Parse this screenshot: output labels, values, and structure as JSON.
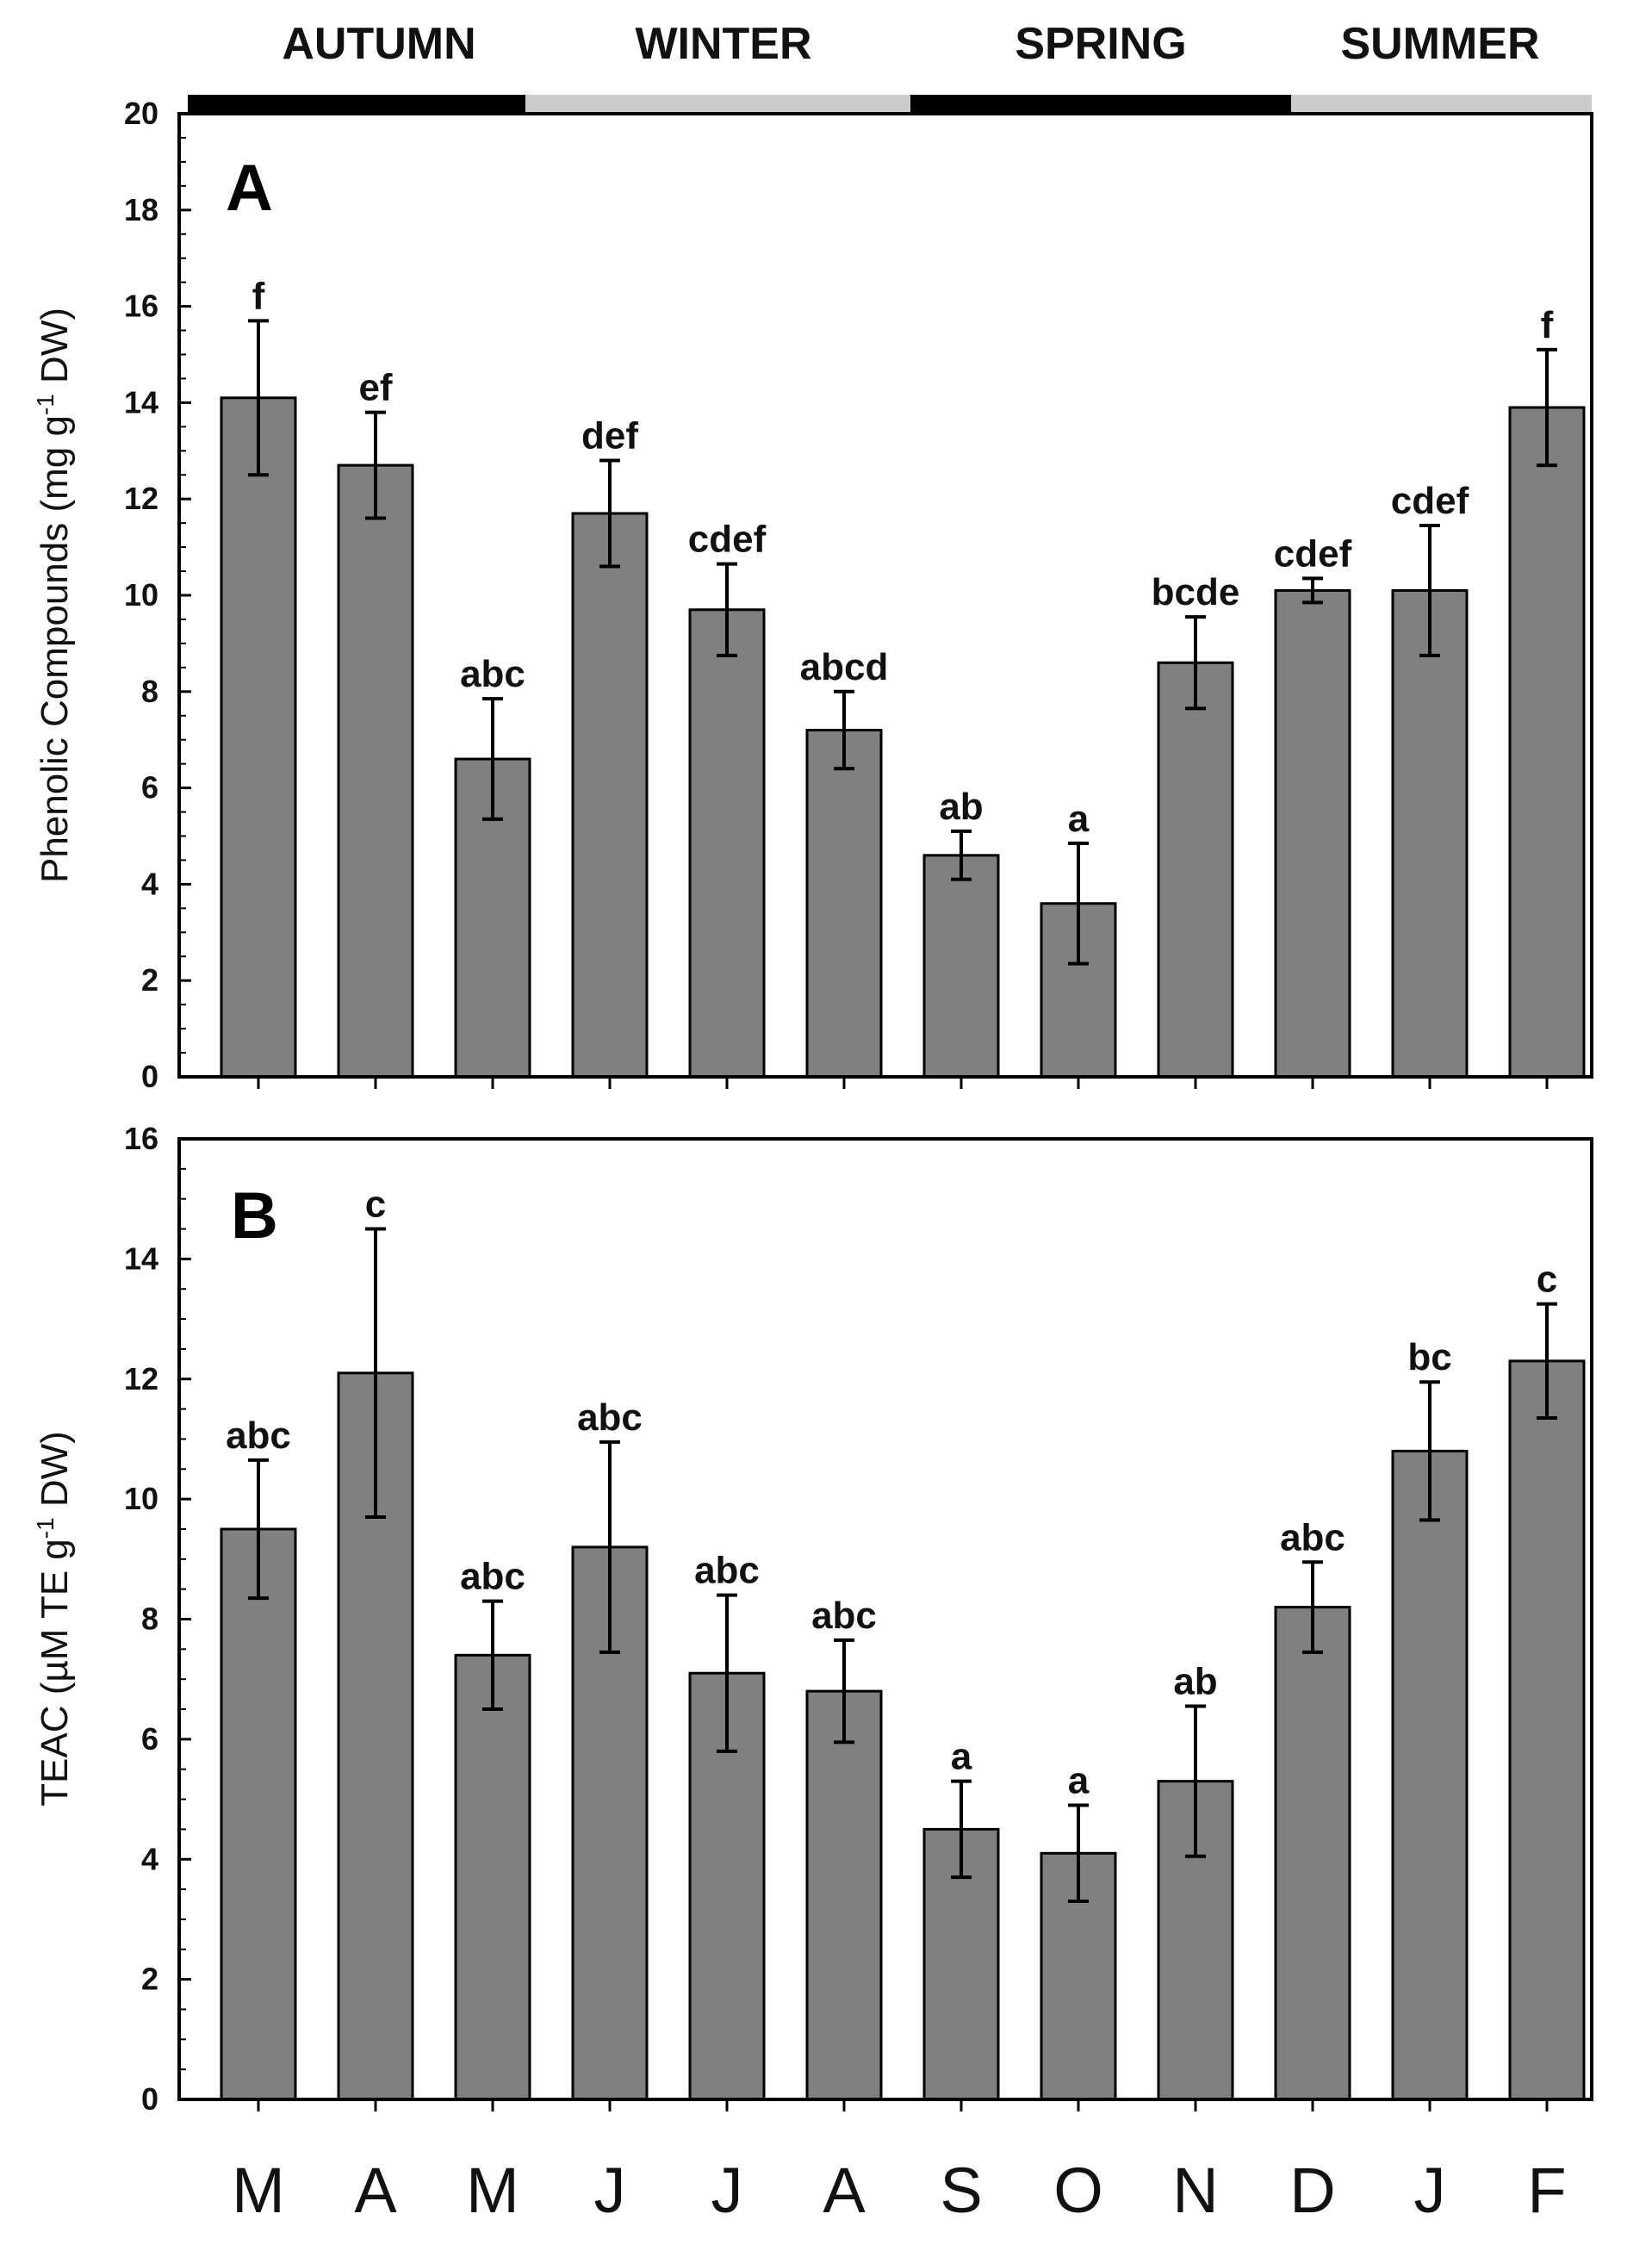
{
  "seasons": [
    {
      "label": "AUTUMN",
      "color": "#000000"
    },
    {
      "label": "WINTER",
      "color": "#cccccc"
    },
    {
      "label": "SPRING",
      "color": "#000000"
    },
    {
      "label": "SUMMER",
      "color": "#cccccc"
    }
  ],
  "bar_color": "#808080",
  "chart_data": [
    {
      "type": "bar",
      "panel": "A",
      "ylabel_main": "Phenolic Compounds (mg g",
      "ylabel_sup": "-1",
      "ylabel_end": " DW)",
      "ylim": [
        0,
        20
      ],
      "yticks": [
        0,
        2,
        4,
        6,
        8,
        10,
        12,
        14,
        16,
        18,
        20
      ],
      "categories": [
        "M",
        "A",
        "M",
        "J",
        "J",
        "A",
        "S",
        "O",
        "N",
        "D",
        "J",
        "F"
      ],
      "values": [
        14.1,
        12.7,
        6.6,
        11.7,
        9.7,
        7.2,
        4.6,
        3.6,
        8.6,
        10.1,
        10.1,
        13.9
      ],
      "errors": [
        1.6,
        1.1,
        1.25,
        1.1,
        0.95,
        0.8,
        0.5,
        1.25,
        0.95,
        0.25,
        1.35,
        1.2
      ],
      "labels": [
        "f",
        "ef",
        "abc",
        "def",
        "cdef",
        "abcd",
        "ab",
        "a",
        "bcde",
        "cdef",
        "cdef",
        "f"
      ]
    },
    {
      "type": "bar",
      "panel": "B",
      "ylabel_main": "TEAC (µM TE g",
      "ylabel_sup": "-1",
      "ylabel_end": " DW)",
      "ylim": [
        0,
        16
      ],
      "yticks": [
        0,
        2,
        4,
        6,
        8,
        10,
        12,
        14,
        16
      ],
      "categories": [
        "M",
        "A",
        "M",
        "J",
        "J",
        "A",
        "S",
        "O",
        "N",
        "D",
        "J",
        "F"
      ],
      "values": [
        9.5,
        12.1,
        7.4,
        9.2,
        7.1,
        6.8,
        4.5,
        4.1,
        5.3,
        8.2,
        10.8,
        12.3
      ],
      "errors": [
        1.15,
        2.4,
        0.9,
        1.75,
        1.3,
        0.85,
        0.8,
        0.8,
        1.25,
        0.75,
        1.15,
        0.95
      ],
      "labels": [
        "abc",
        "c",
        "abc",
        "abc",
        "abc",
        "abc",
        "a",
        "a",
        "ab",
        "abc",
        "bc",
        "c"
      ]
    }
  ],
  "months": [
    "M",
    "A",
    "M",
    "J",
    "J",
    "A",
    "S",
    "O",
    "N",
    "D",
    "J",
    "F"
  ]
}
